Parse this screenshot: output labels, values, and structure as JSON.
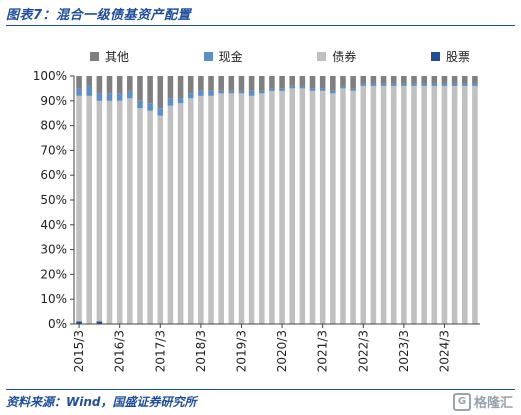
{
  "header": {
    "title": "图表7：混合一级债基资产配置"
  },
  "footer": {
    "source": "资料来源：Wind，国盛证券研究所",
    "watermark": "格隆汇"
  },
  "colors": {
    "other": "#7f7f7f",
    "cash": "#5b8fc9",
    "bond": "#c0c0c0",
    "stock": "#1f4e9e",
    "title": "#1f4e9e"
  },
  "chart_data": {
    "type": "bar",
    "stacked": true,
    "title": "",
    "xlabel": "",
    "ylabel": "",
    "ylim": [
      0,
      100
    ],
    "y_ticks": [
      "0%",
      "10%",
      "20%",
      "30%",
      "40%",
      "50%",
      "60%",
      "70%",
      "80%",
      "90%",
      "100%"
    ],
    "x_tick_labels": [
      "2015/3",
      "2016/3",
      "2017/3",
      "2018/3",
      "2019/3",
      "2020/3",
      "2021/3",
      "2022/3",
      "2023/3",
      "2024/3"
    ],
    "categories": [
      "2015Q1",
      "2015Q2",
      "2015Q3",
      "2015Q4",
      "2016Q1",
      "2016Q2",
      "2016Q3",
      "2016Q4",
      "2017Q1",
      "2017Q2",
      "2017Q3",
      "2017Q4",
      "2018Q1",
      "2018Q2",
      "2018Q3",
      "2018Q4",
      "2019Q1",
      "2019Q2",
      "2019Q3",
      "2019Q4",
      "2020Q1",
      "2020Q2",
      "2020Q3",
      "2020Q4",
      "2021Q1",
      "2021Q2",
      "2021Q3",
      "2021Q4",
      "2022Q1",
      "2022Q2",
      "2022Q3",
      "2022Q4",
      "2023Q1",
      "2023Q2",
      "2023Q3",
      "2023Q4",
      "2024Q1",
      "2024Q2",
      "2024Q3",
      "2024Q4"
    ],
    "legend_position": "top",
    "series": [
      {
        "name": "股票",
        "color_key": "stock",
        "values": [
          1,
          0,
          1,
          0,
          0,
          0,
          0,
          0,
          0,
          0,
          0,
          0,
          0,
          0,
          0,
          0,
          0,
          0,
          0,
          0,
          0,
          0,
          0,
          0,
          0,
          0,
          0,
          0,
          0,
          0,
          0,
          0,
          0,
          0,
          0,
          0,
          0,
          0,
          0,
          0
        ]
      },
      {
        "name": "债券",
        "color_key": "bond",
        "values": [
          91,
          92,
          89,
          90,
          90,
          91,
          87,
          86,
          84,
          88,
          89,
          91,
          92,
          92,
          93,
          93,
          93,
          92,
          93,
          94,
          94,
          95,
          95,
          94,
          94,
          93,
          95,
          94,
          96,
          96,
          96,
          96,
          96,
          96,
          96,
          96,
          96,
          96,
          96,
          96
        ]
      },
      {
        "name": "现金",
        "color_key": "cash",
        "values": [
          3,
          4,
          3,
          3,
          3,
          3,
          3,
          3,
          3,
          3,
          2,
          2,
          2,
          2,
          1,
          1,
          1,
          2,
          1,
          1,
          1,
          1,
          1,
          1,
          1,
          1,
          1,
          1,
          1,
          1,
          1,
          1,
          1,
          1,
          1,
          1,
          1,
          1,
          1,
          1
        ]
      },
      {
        "name": "其他",
        "color_key": "other",
        "values": [
          5,
          4,
          7,
          7,
          7,
          6,
          10,
          11,
          13,
          9,
          9,
          7,
          6,
          6,
          6,
          6,
          6,
          6,
          6,
          5,
          5,
          4,
          4,
          5,
          5,
          6,
          4,
          5,
          3,
          3,
          3,
          3,
          3,
          3,
          3,
          3,
          3,
          3,
          3,
          3
        ]
      }
    ]
  }
}
